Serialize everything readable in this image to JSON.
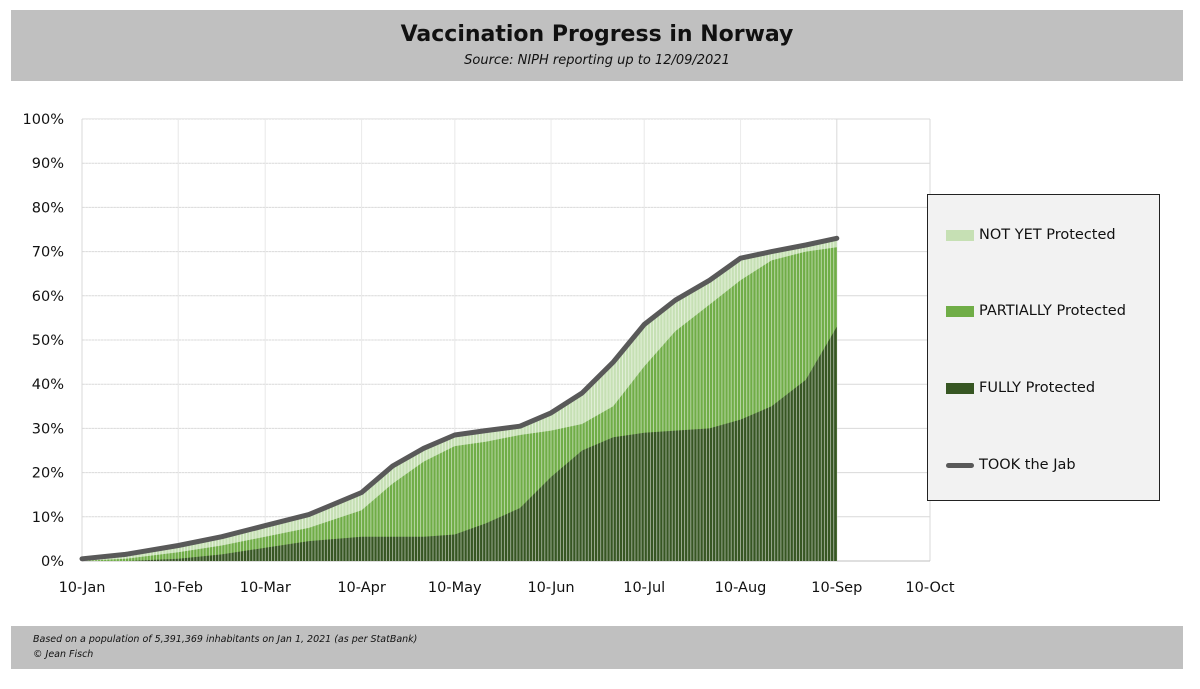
{
  "header": {
    "title": "Vaccination Progress in Norway",
    "subtitle": "Source: NIPH reporting up to 12/09/2021"
  },
  "footer": {
    "line1": "Based on a population of 5,391,369 inhabitants on Jan 1, 2021 (as per StatBank)",
    "line2": "© Jean Fisch"
  },
  "colors": {
    "header_bg": "#c0c0c0",
    "not_yet": "#c6e0b4",
    "partial": "#70ad47",
    "fully": "#375623",
    "took_jab": "#595959",
    "legend_bg": "#f2f2f2"
  },
  "chart_data": {
    "type": "area",
    "title": "Vaccination Progress in Norway",
    "subtitle": "Source: NIPH reporting up to 12/09/2021",
    "xlabel": "",
    "ylabel": "",
    "x_range": [
      "2021-01-10",
      "2021-10-10"
    ],
    "ylim": [
      0,
      100
    ],
    "grid": true,
    "legend_position": "right",
    "x_ticks": [
      "10-Jan",
      "10-Feb",
      "10-Mar",
      "10-Apr",
      "10-May",
      "10-Jun",
      "10-Jul",
      "10-Aug",
      "10-Sep",
      "10-Oct"
    ],
    "y_ticks": [
      "0%",
      "10%",
      "20%",
      "30%",
      "40%",
      "50%",
      "60%",
      "70%",
      "80%",
      "90%",
      "100%"
    ],
    "legend": [
      {
        "key": "not_yet",
        "label": "NOT YET Protected",
        "style": "area"
      },
      {
        "key": "partial",
        "label": "PARTIALLY Protected",
        "style": "area"
      },
      {
        "key": "fully",
        "label": "FULLY Protected",
        "style": "area"
      },
      {
        "key": "took_jab",
        "label": "TOOK the Jab",
        "style": "line"
      }
    ],
    "x": [
      "2021-01-10",
      "2021-01-24",
      "2021-02-10",
      "2021-02-24",
      "2021-03-10",
      "2021-03-24",
      "2021-04-10",
      "2021-04-20",
      "2021-04-30",
      "2021-05-10",
      "2021-05-20",
      "2021-05-31",
      "2021-06-10",
      "2021-06-20",
      "2021-06-30",
      "2021-07-10",
      "2021-07-20",
      "2021-07-31",
      "2021-08-10",
      "2021-08-20",
      "2021-08-31",
      "2021-09-10"
    ],
    "series": [
      {
        "name": "TOOK the Jab",
        "key": "took_jab",
        "values": [
          0.5,
          1.5,
          3.5,
          5.5,
          8,
          10.5,
          15.5,
          21.5,
          25.5,
          28.5,
          29.5,
          30.5,
          33.5,
          38,
          45,
          53.5,
          59,
          63.5,
          68.5,
          70,
          71.5,
          73
        ]
      },
      {
        "name": "PARTIALLY Protected",
        "key": "partial",
        "values": [
          0,
          0.5,
          2,
          3.5,
          5.5,
          7.5,
          11.5,
          17.5,
          22.5,
          26,
          27,
          28.5,
          29.5,
          31,
          35,
          44,
          52,
          58,
          63.5,
          68,
          70,
          71
        ]
      },
      {
        "name": "FULLY Protected",
        "key": "fully",
        "values": [
          0,
          0,
          0.5,
          1.5,
          3,
          4.5,
          5.5,
          5.5,
          5.5,
          6,
          8.5,
          12,
          19,
          25,
          28,
          29,
          29.5,
          30,
          32,
          35,
          41,
          53
        ]
      }
    ]
  }
}
